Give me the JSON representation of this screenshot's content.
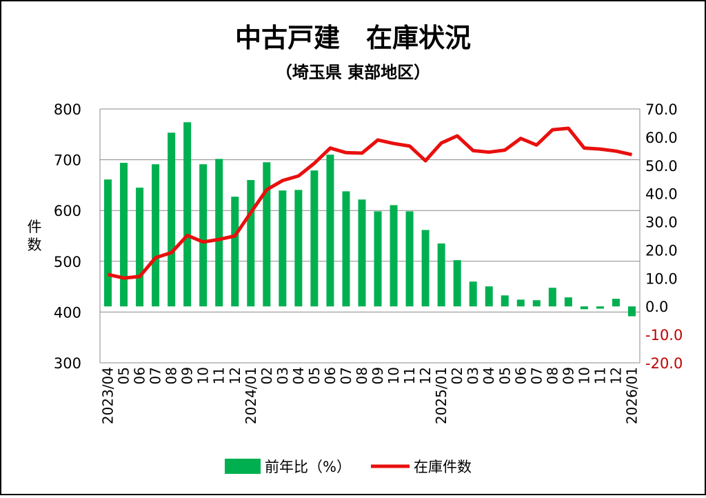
{
  "chart_data": {
    "type": "bar+line",
    "title": "中古戸建　在庫状況",
    "subtitle": "（埼玉県 東部地区）",
    "ylabel_left": "件数",
    "ylim_left": [
      300,
      800
    ],
    "yticks_left": [
      "300",
      "400",
      "500",
      "600",
      "700",
      "800"
    ],
    "ylim_right": [
      -20,
      70
    ],
    "yticks_right": [
      "-20.0",
      "-10.0",
      "0.0",
      "10.0",
      "20.0",
      "30.0",
      "40.0",
      "50.0",
      "60.0",
      "70.0"
    ],
    "grid": true,
    "legend_position": "bottom",
    "categories": [
      "2023/04",
      "05",
      "06",
      "07",
      "08",
      "09",
      "10",
      "11",
      "12",
      "2024/01",
      "02",
      "03",
      "04",
      "05",
      "06",
      "07",
      "08",
      "09",
      "10",
      "11",
      "12",
      "2025/01",
      "02",
      "03",
      "04",
      "05",
      "06",
      "07",
      "08",
      "09",
      "10",
      "11",
      "12",
      "2026/01"
    ],
    "series": [
      {
        "name": "前年比(%)",
        "type": "bar",
        "axis": "right",
        "color": "#00b050",
        "values": [
          45.0,
          50.9,
          42.1,
          50.4,
          61.6,
          65.3,
          50.4,
          52.3,
          38.9,
          44.8,
          51.1,
          41.1,
          41.3,
          48.2,
          53.8,
          40.8,
          37.9,
          33.7,
          35.9,
          33.7,
          27.1,
          22.3,
          16.4,
          8.8,
          7.1,
          3.9,
          2.4,
          2.2,
          6.6,
          3.2,
          -1.0,
          -0.8,
          2.7,
          -3.5
        ]
      },
      {
        "name": "在庫件数",
        "type": "line",
        "axis": "left",
        "color": "#e8100e",
        "values": [
          474,
          467,
          470,
          507,
          517,
          551,
          538,
          543,
          550,
          596,
          641,
          659,
          668,
          693,
          723,
          714,
          713,
          739,
          732,
          727,
          698,
          733,
          747,
          718,
          715,
          719,
          742,
          729,
          759,
          762,
          723,
          721,
          717,
          710
        ]
      }
    ],
    "legend": {
      "bar_label": "前年比（%）",
      "line_label": "在庫件数"
    },
    "negative_tick_color": "#c00000"
  }
}
